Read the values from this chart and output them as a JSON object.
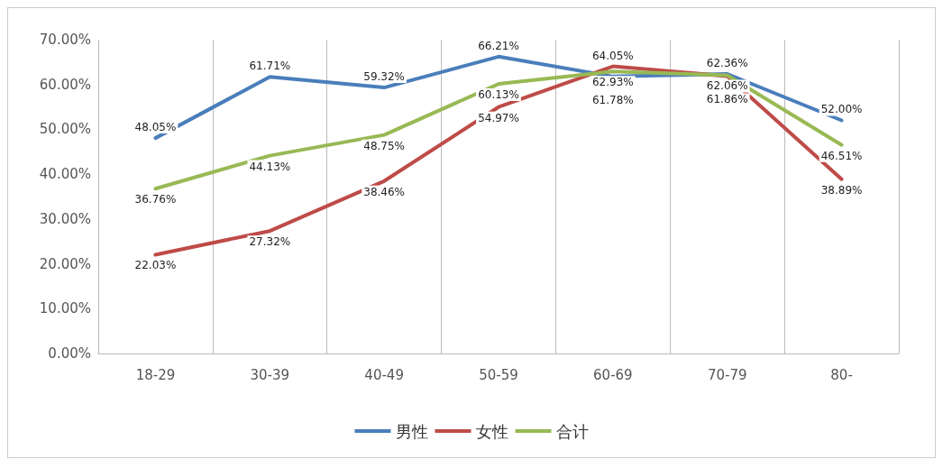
{
  "chart_data": {
    "type": "line",
    "categories": [
      "18-29",
      "30-39",
      "40-49",
      "50-59",
      "60-69",
      "70-79",
      "80-"
    ],
    "series": [
      {
        "name": "男性",
        "color": "#4a7ebb",
        "values": [
          48.05,
          61.71,
          59.32,
          66.21,
          61.78,
          62.36,
          52.0
        ],
        "value_labels": [
          "48.05%",
          "61.71%",
          "59.32%",
          "66.21%",
          "61.78%",
          "62.36%",
          "52.00%"
        ]
      },
      {
        "name": "女性",
        "color": "#be4b48",
        "values": [
          22.03,
          27.32,
          38.46,
          54.97,
          64.05,
          61.86,
          38.89
        ],
        "value_labels": [
          "22.03%",
          "27.32%",
          "38.46%",
          "54.97%",
          "64.05%",
          "61.86%",
          "38.89%"
        ]
      },
      {
        "name": "合计",
        "color": "#98b954",
        "values": [
          36.76,
          44.13,
          48.75,
          60.13,
          62.93,
          62.06,
          46.51
        ],
        "value_labels": [
          "36.76%",
          "44.13%",
          "48.75%",
          "60.13%",
          "62.93%",
          "62.06%",
          "46.51%"
        ]
      }
    ],
    "ylim": [
      0,
      70
    ],
    "yticks": [
      {
        "value": 0,
        "label": "0.00%"
      },
      {
        "value": 10,
        "label": "10.00%"
      },
      {
        "value": 20,
        "label": "20.00%"
      },
      {
        "value": 30,
        "label": "30.00%"
      },
      {
        "value": 40,
        "label": "40.00%"
      },
      {
        "value": 50,
        "label": "50.00%"
      },
      {
        "value": 60,
        "label": "60.00%"
      },
      {
        "value": 70,
        "label": "70.00%"
      }
    ],
    "grid": "x",
    "legend": "bottom",
    "marker": "none",
    "line_style": "solid"
  }
}
